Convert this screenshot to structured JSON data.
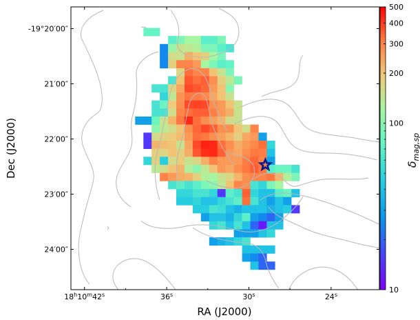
{
  "chart_data": {
    "type": "heatmap",
    "title": "",
    "xlabel": "RA (J2000)",
    "ylabel": "Dec (J2000)",
    "x_axis": {
      "unit": "seconds of RA",
      "direction": "increasing-to-left",
      "range_s": [
        40.3,
        21.5
      ],
      "ticks": [
        {
          "value": 42,
          "prefix": "18",
          "h": "h",
          "m_val": "10",
          "m": "m",
          "s_val": "42",
          "s": "s"
        },
        {
          "value": 36,
          "prefix": "",
          "h": "",
          "m_val": "",
          "m": "",
          "s_val": "36",
          "s": "s"
        },
        {
          "value": 30,
          "prefix": "",
          "h": "",
          "m_val": "",
          "m": "",
          "s_val": "30",
          "s": "s"
        },
        {
          "value": 24,
          "prefix": "",
          "h": "",
          "m_val": "",
          "m": "",
          "s_val": "24",
          "s": "s"
        }
      ]
    },
    "y_axis": {
      "unit": "arcmin offset from -19 deg 20 arcmin",
      "range_min": [
        -0.65,
        4.5
      ],
      "ticks": [
        {
          "value": 0,
          "label": "-19°20′00″"
        },
        {
          "value": 1,
          "label": "21′00″"
        },
        {
          "value": 2,
          "label": "22′00″"
        },
        {
          "value": 3,
          "label": "23′00″"
        },
        {
          "value": 4,
          "label": "24′00″"
        }
      ]
    },
    "colorbar": {
      "label": "δmag,sp",
      "label_main": "δ",
      "label_sub": "mag,sp",
      "scale": "log",
      "range": [
        10,
        500
      ],
      "ticks": [
        {
          "value": 500,
          "label": "500"
        },
        {
          "value": 400,
          "label": "400"
        },
        {
          "value": 300,
          "label": "300"
        },
        {
          "value": 200,
          "label": "200"
        },
        {
          "value": 100,
          "label": "100"
        },
        {
          "value": 10,
          "label": "10"
        }
      ],
      "colormap": "rainbow"
    },
    "grid": false,
    "marker": {
      "symbol": "star",
      "color": "#0a1a8c",
      "ra_s": 28.8,
      "dec_min": 2.47
    },
    "heatmap_grid": {
      "x0_s": 38.0,
      "dx_s": -0.6,
      "y0_min": 0.06,
      "dy_min": 0.146,
      "rows": [
        {
          "row": 0,
          "start": 1,
          "values": [
            75,
            75
          ]
        },
        {
          "row": 1,
          "start": 4,
          "values": [
            70,
            90,
            120,
            120,
            70,
            70,
            90
          ]
        },
        {
          "row": 2,
          "start": 3,
          "values": [
            25,
            110,
            150,
            140,
            130,
            90,
            90,
            70,
            60
          ]
        },
        {
          "row": 3,
          "start": 3,
          "values": [
            25,
            160,
            150,
            230,
            200,
            180,
            120,
            90
          ]
        },
        {
          "row": 4,
          "start": 3,
          "values": [
            25,
            180,
            300,
            300,
            260,
            120,
            90,
            70,
            75
          ]
        },
        {
          "row": 5,
          "start": 5,
          "values": [
            170,
            330,
            300,
            300,
            200,
            150,
            90
          ]
        },
        {
          "row": 6,
          "start": 4,
          "values": [
            60,
            200,
            360,
            330,
            350,
            280,
            180,
            140,
            90
          ]
        },
        {
          "row": 7,
          "start": 2,
          "values": [
            60,
            60,
            170,
            240,
            380,
            360,
            340,
            260,
            200,
            100
          ]
        },
        {
          "row": 8,
          "start": 3,
          "values": [
            50,
            140,
            270,
            320,
            310,
            290,
            240,
            200,
            150
          ]
        },
        {
          "row": 9,
          "start": 2,
          "values": [
            60,
            80,
            190,
            280,
            380,
            390,
            380,
            280,
            260,
            200,
            150
          ]
        },
        {
          "row": 10,
          "start": 2,
          "values": [
            60,
            60,
            160,
            300,
            330,
            350,
            350,
            310,
            260,
            230,
            150
          ]
        },
        {
          "row": 11,
          "start": 0,
          "values": [
            30,
            30,
            80,
            150,
            220,
            320,
            430,
            330,
            280,
            250,
            220,
            160,
            150
          ]
        },
        {
          "row": 12,
          "start": 2,
          "values": [
            100,
            140,
            160,
            200,
            280,
            340,
            380,
            350,
            280,
            280,
            200,
            160,
            300
          ]
        },
        {
          "row": 13,
          "start": 1,
          "values": [
            15,
            160,
            180,
            190,
            210,
            260,
            330,
            320,
            280,
            250,
            220,
            180,
            240,
            260,
            30
          ]
        },
        {
          "row": 14,
          "start": 1,
          "values": [
            15,
            220,
            210,
            200,
            150,
            240,
            380,
            440,
            430,
            330,
            280,
            230,
            260,
            290,
            330,
            50
          ]
        },
        {
          "row": 15,
          "start": 2,
          "values": [
            180,
            170,
            200,
            180,
            230,
            360,
            420,
            430,
            350,
            260,
            240,
            280,
            320,
            310,
            40
          ]
        },
        {
          "row": 16,
          "start": 1,
          "values": [
            50,
            180,
            45,
            160,
            190,
            150,
            170,
            230,
            300,
            260,
            260,
            260,
            310,
            340,
            300,
            30
          ]
        },
        {
          "row": 17,
          "start": 2,
          "values": [
            140,
            160,
            200,
            220,
            130,
            100,
            140,
            200,
            260,
            240,
            280,
            320,
            350,
            320,
            70,
            80,
            80,
            60
          ]
        },
        {
          "row": 18,
          "start": 3,
          "values": [
            300,
            260,
            230,
            220,
            180,
            130,
            120,
            150,
            170,
            220,
            280,
            300,
            300,
            320,
            220,
            130,
            90
          ]
        },
        {
          "row": 19,
          "start": 4,
          "values": [
            60,
            70,
            60,
            70,
            90,
            100,
            140,
            200,
            300,
            280,
            60,
            50,
            90,
            120
          ]
        },
        {
          "row": 20,
          "start": 5,
          "values": [
            50,
            50,
            60,
            60,
            50,
            15,
            70,
            60,
            350,
            50,
            40,
            40,
            70,
            80,
            40
          ]
        },
        {
          "row": 21,
          "start": 5,
          "values": [
            45,
            45,
            50,
            40,
            40,
            50,
            60,
            70,
            330,
            60,
            40,
            30,
            40,
            30
          ]
        },
        {
          "row": 22,
          "start": 7,
          "values": [
            45,
            45,
            60,
            55,
            40,
            35,
            40,
            40,
            40,
            35,
            40,
            45,
            15
          ]
        },
        {
          "row": 23,
          "start": 8,
          "values": [
            30,
            40,
            40,
            35,
            50,
            70,
            30,
            25,
            20,
            30
          ]
        },
        {
          "row": 24,
          "start": 9,
          "values": [
            50,
            60,
            40,
            60,
            40,
            20,
            12,
            40,
            40
          ]
        },
        {
          "row": 25,
          "start": 12,
          "values": [
            30,
            30,
            30,
            40,
            50
          ]
        },
        {
          "row": 26,
          "start": 9,
          "values": [
            30,
            35,
            40,
            50,
            60
          ]
        },
        {
          "row": 27,
          "start": 13,
          "values": [
            40,
            40,
            40,
            40
          ]
        },
        {
          "row": 28,
          "start": 13,
          "values": [
            30,
            25,
            20
          ]
        },
        {
          "row": 29,
          "start": 14,
          "values": [
            40,
            20,
            20
          ]
        }
      ]
    }
  }
}
